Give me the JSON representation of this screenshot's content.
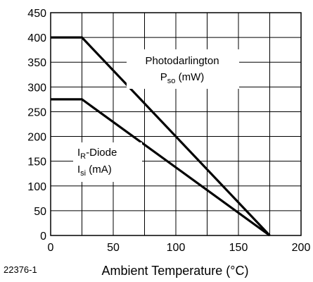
{
  "figure_id": "22376-1",
  "chart_data": {
    "type": "line",
    "xlabel": "Ambient Temperature (°C)",
    "ylabel": "",
    "xlim": [
      0,
      200
    ],
    "ylim": [
      0,
      450
    ],
    "xticks": [
      0,
      50,
      100,
      150,
      200
    ],
    "yticks": [
      0,
      50,
      100,
      150,
      200,
      250,
      300,
      350,
      400,
      450
    ],
    "grid": true,
    "series": [
      {
        "name": "Photodarlington P_so (mW)",
        "label_main": "Photodarlington",
        "label_sym": "P",
        "label_sub": "so",
        "label_unit": " (mW)",
        "x": [
          0,
          25,
          175
        ],
        "y": [
          400,
          400,
          0
        ]
      },
      {
        "name": "I_R-Diode I_si (mA)",
        "label_sym1": "I",
        "label_sub1": "R",
        "label_rest1": "-Diode",
        "label_sym2": "I",
        "label_sub2": "si",
        "label_unit2": " (mA)",
        "x": [
          0,
          25,
          175
        ],
        "y": [
          275,
          275,
          0
        ]
      }
    ]
  }
}
